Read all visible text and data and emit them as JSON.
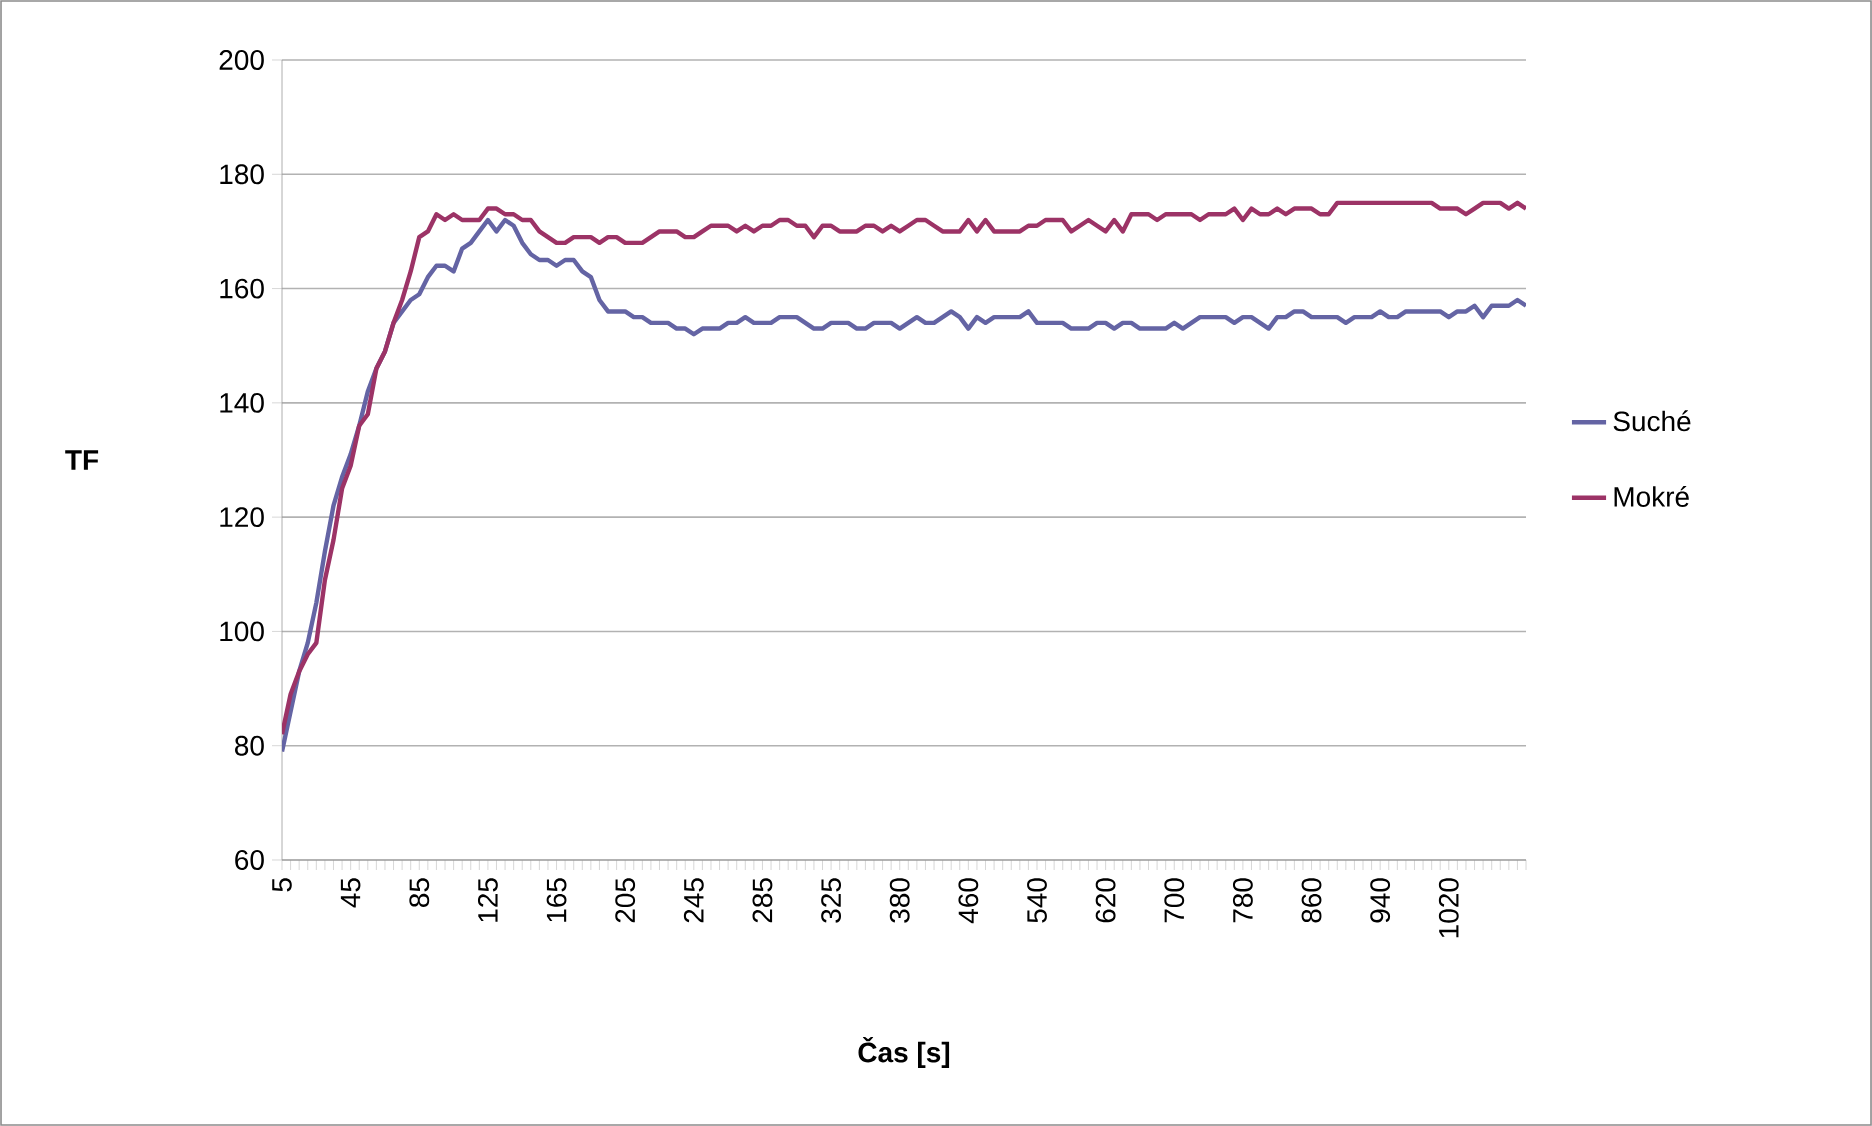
{
  "chart_data": {
    "type": "line",
    "xlabel": "Čas [s]",
    "ylabel": "TF",
    "categories": [
      "5",
      null,
      null,
      null,
      null,
      null,
      null,
      null,
      "45",
      null,
      null,
      null,
      null,
      null,
      null,
      null,
      "85",
      null,
      null,
      null,
      null,
      null,
      null,
      null,
      "125",
      null,
      null,
      null,
      null,
      null,
      null,
      null,
      "165",
      null,
      null,
      null,
      null,
      null,
      null,
      null,
      "205",
      null,
      null,
      null,
      null,
      null,
      null,
      null,
      "245",
      null,
      null,
      null,
      null,
      null,
      null,
      null,
      "285",
      null,
      null,
      null,
      null,
      null,
      null,
      null,
      "325",
      null,
      null,
      null,
      null,
      null,
      null,
      null,
      "380",
      null,
      null,
      null,
      null,
      null,
      null,
      null,
      "460",
      null,
      null,
      null,
      null,
      null,
      null,
      null,
      "540",
      null,
      null,
      null,
      null,
      null,
      null,
      null,
      "620",
      null,
      null,
      null,
      null,
      null,
      null,
      null,
      "700",
      null,
      null,
      null,
      null,
      null,
      null,
      null,
      "780",
      null,
      null,
      null,
      null,
      null,
      null,
      null,
      "860",
      null,
      null,
      null,
      null,
      null,
      null,
      null,
      "940",
      null,
      null,
      null,
      null,
      null,
      null,
      null,
      "1020",
      null,
      null,
      null,
      null,
      null,
      null,
      null,
      null,
      null
    ],
    "series": [
      {
        "name": "Suché",
        "color": "#6464a4",
        "values": [
          79,
          86,
          93,
          98,
          105,
          114,
          122,
          127,
          131,
          136,
          142,
          146,
          149,
          154,
          156,
          158,
          159,
          162,
          164,
          164,
          163,
          167,
          168,
          170,
          172,
          170,
          172,
          171,
          168,
          166,
          165,
          165,
          164,
          165,
          165,
          163,
          162,
          158,
          156,
          156,
          156,
          155,
          155,
          154,
          154,
          154,
          153,
          153,
          152,
          153,
          153,
          153,
          154,
          154,
          155,
          154,
          154,
          154,
          155,
          155,
          155,
          154,
          153,
          153,
          154,
          154,
          154,
          153,
          153,
          154,
          154,
          154,
          153,
          154,
          155,
          154,
          154,
          155,
          156,
          155,
          153,
          155,
          154,
          155,
          155,
          155,
          155,
          156,
          154,
          154,
          154,
          154,
          153,
          153,
          153,
          154,
          154,
          153,
          154,
          154,
          153,
          153,
          153,
          153,
          154,
          153,
          154,
          155,
          155,
          155,
          155,
          154,
          155,
          155,
          154,
          153,
          155,
          155,
          156,
          156,
          155,
          155,
          155,
          155,
          154,
          155,
          155,
          155,
          156,
          155,
          155,
          156,
          156,
          156,
          156,
          156,
          155,
          156,
          156,
          157,
          155,
          157,
          157,
          157,
          158,
          157
        ]
      },
      {
        "name": "Mokré",
        "color": "#9c3366",
        "values": [
          82,
          89,
          93,
          96,
          98,
          109,
          116,
          125,
          129,
          136,
          138,
          146,
          149,
          154,
          158,
          163,
          169,
          170,
          173,
          172,
          173,
          172,
          172,
          172,
          174,
          174,
          173,
          173,
          172,
          172,
          170,
          169,
          168,
          168,
          169,
          169,
          169,
          168,
          169,
          169,
          168,
          168,
          168,
          169,
          170,
          170,
          170,
          169,
          169,
          170,
          171,
          171,
          171,
          170,
          171,
          170,
          171,
          171,
          172,
          172,
          171,
          171,
          169,
          171,
          171,
          170,
          170,
          170,
          171,
          171,
          170,
          171,
          170,
          171,
          172,
          172,
          171,
          170,
          170,
          170,
          172,
          170,
          172,
          170,
          170,
          170,
          170,
          171,
          171,
          172,
          172,
          172,
          170,
          171,
          172,
          171,
          170,
          172,
          170,
          173,
          173,
          173,
          172,
          173,
          173,
          173,
          173,
          172,
          173,
          173,
          173,
          174,
          172,
          174,
          173,
          173,
          174,
          173,
          174,
          174,
          174,
          173,
          173,
          175,
          175,
          175,
          175,
          175,
          175,
          175,
          175,
          175,
          175,
          175,
          175,
          174,
          174,
          174,
          173,
          174,
          175,
          175,
          175,
          174,
          175,
          174
        ]
      }
    ],
    "ylim": [
      60,
      200
    ],
    "yticks": [
      60,
      80,
      100,
      120,
      140,
      160,
      180,
      200
    ],
    "grid": "y",
    "legend": "right"
  }
}
